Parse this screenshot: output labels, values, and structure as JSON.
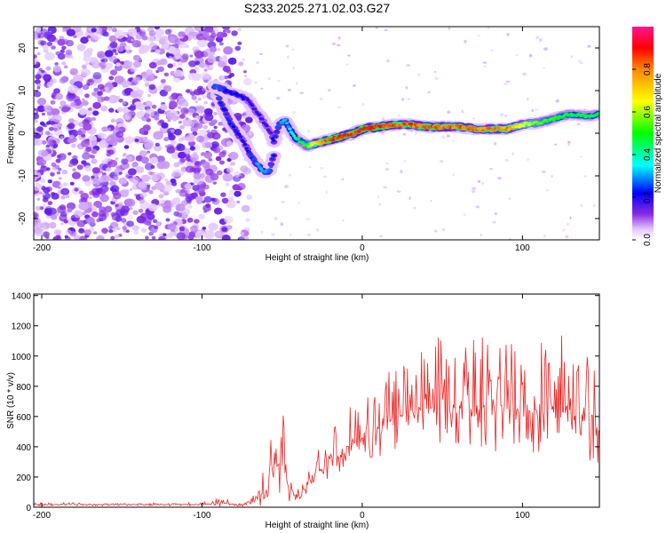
{
  "title": "S233.2025.271.02.03.G27",
  "chart_data": [
    {
      "type": "heatmap",
      "title": "S233.2025.271.02.03.G27",
      "xlabel": "Height of straight line (km)",
      "ylabel": "Frequency (Hz)",
      "xlim": [
        -205,
        148
      ],
      "ylim": [
        -25,
        25
      ],
      "xticks": [
        -200,
        -100,
        0,
        100
      ],
      "yticks": [
        -20,
        -10,
        0,
        10,
        20
      ],
      "colorbar": {
        "label": "Normalized spectral amplitude",
        "range": [
          0,
          1
        ],
        "ticks": [
          0.0,
          0.2,
          0.4,
          0.6,
          0.8
        ],
        "tick_labels": [
          "0.0",
          "0.2",
          "0.4",
          "0.6",
          "0.8"
        ]
      },
      "noise_region_x": [
        -205,
        -70
      ],
      "ridge": {
        "x": [
          -92,
          -85,
          -78,
          -72,
          -66,
          -60,
          -57,
          -55,
          -52,
          -48,
          -45,
          -42,
          -38,
          -34,
          -30,
          -25,
          -20,
          -15,
          -10,
          -5,
          0,
          10,
          20,
          30,
          40,
          50,
          60,
          70,
          80,
          90,
          100,
          110,
          120,
          130,
          140,
          148
        ],
        "y": [
          11,
          10,
          9,
          8,
          5,
          2,
          0,
          -2,
          2,
          3,
          1,
          -1,
          -2,
          -3,
          -2.5,
          -2,
          -1.5,
          -1,
          -0.5,
          0,
          1,
          1.5,
          2,
          2,
          1.5,
          1.5,
          1.5,
          1,
          1,
          1,
          2,
          2.5,
          3.5,
          4.5,
          4,
          4.5
        ],
        "amplitude": [
          0.3,
          0.25,
          0.25,
          0.2,
          0.2,
          0.2,
          0.2,
          0.25,
          0.3,
          0.35,
          0.35,
          0.45,
          0.5,
          0.6,
          0.75,
          0.85,
          0.95,
          0.95,
          0.95,
          0.95,
          1.0,
          0.95,
          0.9,
          0.9,
          0.9,
          0.9,
          0.9,
          0.85,
          0.85,
          0.85,
          0.7,
          0.6,
          0.55,
          0.5,
          0.5,
          0.5
        ]
      },
      "branch": {
        "x": [
          -92,
          -88,
          -83,
          -78,
          -74,
          -70,
          -66,
          -62,
          -58,
          -55
        ],
        "y": [
          11,
          7,
          3,
          0,
          -2,
          -5,
          -7,
          -9,
          -9,
          -5
        ],
        "amplitude": [
          0.3,
          0.25,
          0.25,
          0.25,
          0.2,
          0.25,
          0.3,
          0.35,
          0.3,
          0.25
        ]
      }
    },
    {
      "type": "line",
      "xlabel": "Height of straight line (km)",
      "ylabel": "SNR (10 * v/v)",
      "xlim": [
        -205,
        148
      ],
      "ylim": [
        0,
        1410
      ],
      "xticks": [
        -200,
        -100,
        0,
        100
      ],
      "yticks": [
        0,
        200,
        400,
        600,
        800,
        1000,
        1200,
        1400
      ],
      "color": "#ee2222",
      "envelope": {
        "x": [
          -205,
          -100,
          -90,
          -80,
          -70,
          -65,
          -60,
          -55,
          -50,
          -45,
          -42,
          -38,
          -35,
          -30,
          -20,
          -10,
          0,
          10,
          20,
          30,
          40,
          50,
          60,
          70,
          80,
          90,
          100,
          110,
          120,
          130,
          140,
          148
        ],
        "mean": [
          18,
          18,
          28,
          25,
          20,
          60,
          120,
          250,
          320,
          90,
          60,
          70,
          130,
          220,
          330,
          400,
          470,
          520,
          580,
          630,
          650,
          670,
          650,
          660,
          680,
          670,
          650,
          620,
          640,
          620,
          560,
          520
        ],
        "amp": [
          8,
          8,
          25,
          15,
          15,
          60,
          120,
          200,
          220,
          60,
          30,
          40,
          60,
          100,
          130,
          150,
          170,
          190,
          230,
          260,
          290,
          330,
          300,
          300,
          320,
          330,
          320,
          300,
          320,
          320,
          280,
          260
        ]
      }
    }
  ]
}
